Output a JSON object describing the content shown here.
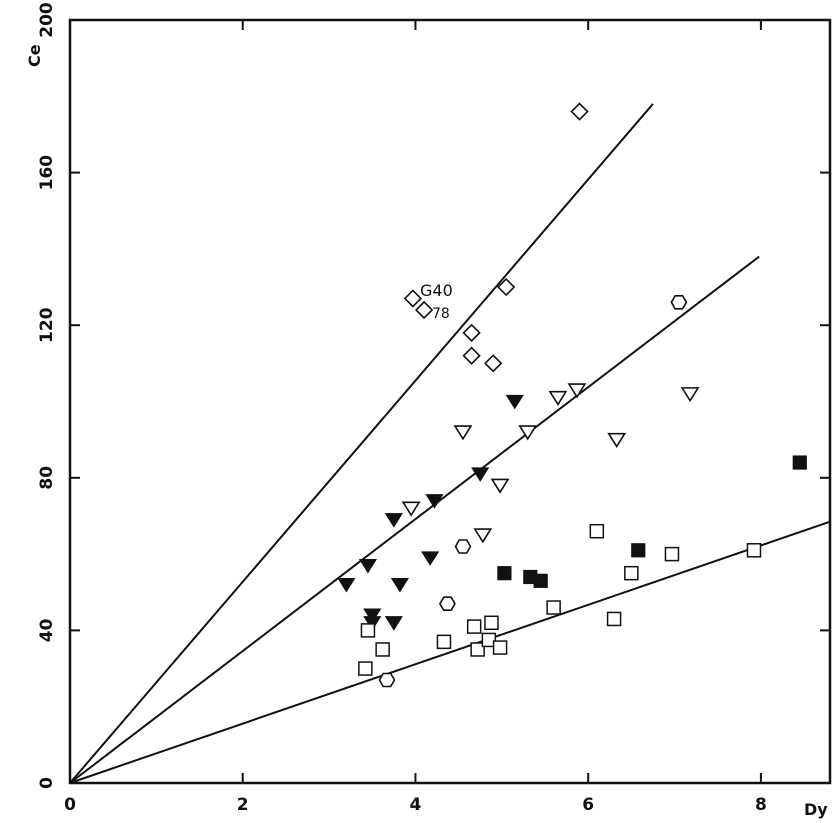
{
  "chart_data": {
    "type": "scatter",
    "title": "",
    "xlabel": "Dy",
    "ylabel": "Ce",
    "xlim": [
      0,
      8.8
    ],
    "ylim": [
      0,
      200
    ],
    "xticks": [
      0,
      2,
      4,
      6,
      8
    ],
    "yticks": [
      0,
      40,
      80,
      120,
      160,
      200
    ],
    "grid": false,
    "annotations": [
      {
        "text": "G40",
        "x": 4.05,
        "y": 128
      },
      {
        "text": "78",
        "x": 4.15,
        "y": 124
      }
    ],
    "lines": [
      {
        "x": [
          0,
          6.75
        ],
        "y": [
          0,
          178
        ]
      },
      {
        "x": [
          0,
          7.98
        ],
        "y": [
          0,
          138
        ]
      },
      {
        "x": [
          0,
          8.8
        ],
        "y": [
          0,
          68.5
        ]
      }
    ],
    "series": [
      {
        "marker": "diamond-open",
        "points": [
          [
            5.9,
            176
          ],
          [
            3.97,
            127
          ],
          [
            4.1,
            124
          ],
          [
            5.05,
            130
          ],
          [
            4.65,
            118
          ],
          [
            4.65,
            112
          ],
          [
            4.9,
            110
          ]
        ]
      },
      {
        "marker": "triangle-down-open",
        "points": [
          [
            3.95,
            72
          ],
          [
            4.55,
            92
          ],
          [
            4.98,
            78
          ],
          [
            4.78,
            65
          ],
          [
            5.3,
            92
          ],
          [
            5.65,
            101
          ],
          [
            5.87,
            103
          ],
          [
            6.33,
            90
          ],
          [
            7.18,
            102
          ]
        ]
      },
      {
        "marker": "triangle-down-filled",
        "points": [
          [
            3.2,
            52
          ],
          [
            3.45,
            57
          ],
          [
            3.75,
            69
          ],
          [
            3.82,
            52
          ],
          [
            4.22,
            74
          ],
          [
            4.17,
            59
          ],
          [
            4.75,
            81
          ],
          [
            5.15,
            100
          ],
          [
            3.5,
            44
          ],
          [
            3.5,
            42
          ],
          [
            3.75,
            42
          ]
        ]
      },
      {
        "marker": "hexagon-open",
        "points": [
          [
            7.05,
            126
          ],
          [
            4.55,
            62
          ],
          [
            4.37,
            47
          ],
          [
            3.67,
            27
          ]
        ]
      },
      {
        "marker": "square-open",
        "points": [
          [
            3.45,
            40
          ],
          [
            3.42,
            30
          ],
          [
            3.62,
            35
          ],
          [
            4.33,
            37
          ],
          [
            4.68,
            41
          ],
          [
            4.72,
            35
          ],
          [
            4.85,
            37.5
          ],
          [
            4.88,
            42
          ],
          [
            4.98,
            35.5
          ],
          [
            5.6,
            46
          ],
          [
            6.1,
            66
          ],
          [
            6.3,
            43
          ],
          [
            6.5,
            55
          ],
          [
            6.97,
            60
          ],
          [
            7.92,
            61
          ]
        ]
      },
      {
        "marker": "square-filled",
        "points": [
          [
            5.03,
            55
          ],
          [
            5.33,
            54
          ],
          [
            5.45,
            53
          ],
          [
            6.58,
            61
          ],
          [
            8.45,
            84
          ]
        ]
      }
    ]
  }
}
